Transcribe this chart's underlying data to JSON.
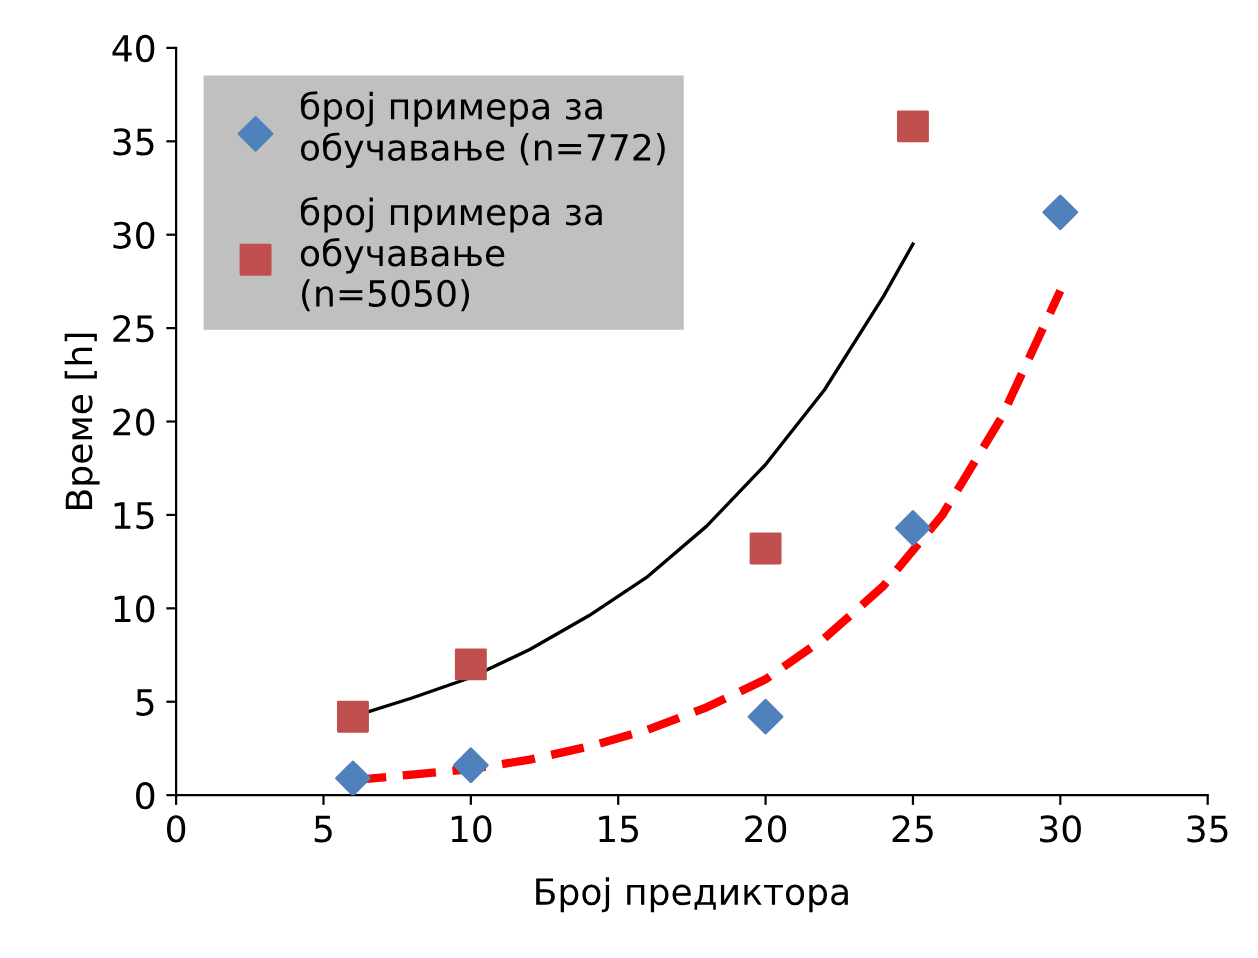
{
  "chart_data": {
    "type": "scatter",
    "xlabel": "Број предиктора",
    "ylabel": "Време [h]",
    "xlim": [
      0,
      35
    ],
    "xticks": [
      0,
      5,
      10,
      15,
      20,
      25,
      30,
      35
    ],
    "ylim": [
      0,
      40
    ],
    "yticks": [
      0,
      5,
      10,
      15,
      20,
      25,
      30,
      35,
      40
    ],
    "grid": false,
    "legend": "top left",
    "series": [
      {
        "name": "број примера за\nобучавање (n=772)",
        "marker": "diamond",
        "color": "#4f81bd",
        "x": [
          6,
          10,
          20,
          25,
          30
        ],
        "values": [
          0.9,
          1.6,
          4.2,
          14.3,
          31.2
        ]
      },
      {
        "name": "број примера за\nобучавање\n(n=5050)",
        "marker": "square",
        "color": "#c0504d",
        "x": [
          6,
          10,
          20,
          25
        ],
        "values": [
          4.2,
          7.0,
          13.2,
          35.8
        ]
      },
      {
        "type": "line",
        "color": "#000000",
        "line_style": "solid",
        "x": [
          6,
          8,
          10,
          12,
          14,
          16,
          18,
          20,
          22,
          24,
          25
        ],
        "values": [
          4.2,
          5.2,
          6.3,
          7.8,
          9.6,
          11.7,
          14.4,
          17.7,
          21.7,
          26.7,
          29.5
        ]
      },
      {
        "type": "line",
        "color": "#ff0000",
        "line_style": "dashed",
        "x": [
          6,
          8,
          10,
          12,
          14,
          16,
          18,
          20,
          22,
          24,
          26,
          28,
          30
        ],
        "values": [
          0.8,
          1.1,
          1.4,
          1.9,
          2.6,
          3.5,
          4.7,
          6.2,
          8.4,
          11.2,
          15.0,
          20.2,
          27.0
        ]
      }
    ]
  }
}
